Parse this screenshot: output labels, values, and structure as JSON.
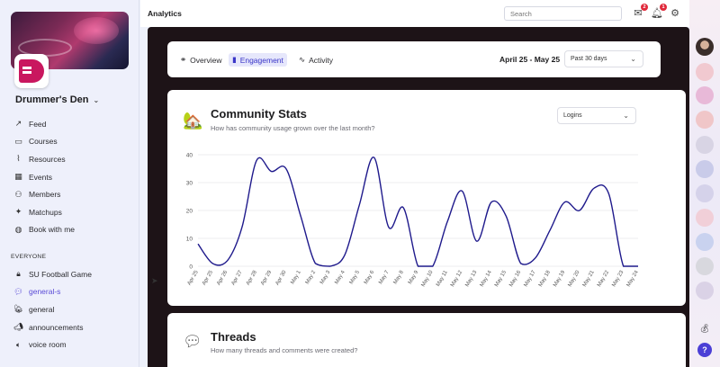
{
  "sidebar": {
    "community_name": "Drummer's Den",
    "nav": [
      {
        "label": "Feed",
        "icon": "trend-icon"
      },
      {
        "label": "Courses",
        "icon": "book-icon"
      },
      {
        "label": "Resources",
        "icon": "paperclip-icon"
      },
      {
        "label": "Events",
        "icon": "calendar-icon"
      },
      {
        "label": "Members",
        "icon": "members-icon"
      },
      {
        "label": "Matchups",
        "icon": "matchups-icon"
      },
      {
        "label": "Book with me",
        "icon": "globe-icon"
      }
    ],
    "section_label": "EVERYONE",
    "channels": [
      {
        "label": "SU Football Game",
        "icon": "lock-icon"
      },
      {
        "label": "general-s",
        "icon": "speech-icon",
        "active": true
      },
      {
        "label": "general",
        "icon": "house-icon"
      },
      {
        "label": "announcements",
        "icon": "megaphone-icon"
      },
      {
        "label": "voice room",
        "icon": "speaker-icon"
      }
    ]
  },
  "topbar": {
    "title": "Analytics",
    "search_placeholder": "Search",
    "mail_badge": "2",
    "bell_badge": "1"
  },
  "tabs": [
    {
      "label": "Overview",
      "icon": "binoculars-icon"
    },
    {
      "label": "Engagement",
      "icon": "bar-chart-icon",
      "active": true
    },
    {
      "label": "Activity",
      "icon": "pulse-icon"
    }
  ],
  "date_range": "April 25 - May 25",
  "period_select": "Past 30 days",
  "stats": {
    "title": "Community Stats",
    "subtitle": "How has community usage grown over the last month?",
    "metric_select": "Logins"
  },
  "threads": {
    "title": "Threads",
    "subtitle": "How many threads and comments were created?"
  },
  "colors": {
    "line": "#1f1a8c",
    "accent": "#3a35c8"
  },
  "chart_data": {
    "type": "line",
    "x": [
      "Apr 25",
      "Apr 25",
      "Apr 26",
      "Apr 27",
      "Apr 28",
      "Apr 29",
      "Apr 30",
      "May 1",
      "May 2",
      "May 3",
      "May 4",
      "May 5",
      "May 6",
      "May 7",
      "May 8",
      "May 9",
      "May 10",
      "May 11",
      "May 12",
      "May 13",
      "May 14",
      "May 15",
      "May 16",
      "May 17",
      "May 18",
      "May 19",
      "May 20",
      "May 21",
      "May 22",
      "May 23",
      "May 24"
    ],
    "series": [
      {
        "values": [
          8,
          1,
          2,
          14,
          38,
          34,
          35,
          18,
          1,
          0,
          4,
          22,
          39,
          14,
          21,
          0,
          0,
          16,
          27,
          9,
          23,
          18,
          1,
          3,
          13,
          23,
          20,
          28,
          26,
          0,
          0
        ]
      }
    ],
    "yticks": [
      0,
      10,
      20,
      30,
      40
    ],
    "ylim": [
      0,
      40
    ]
  }
}
